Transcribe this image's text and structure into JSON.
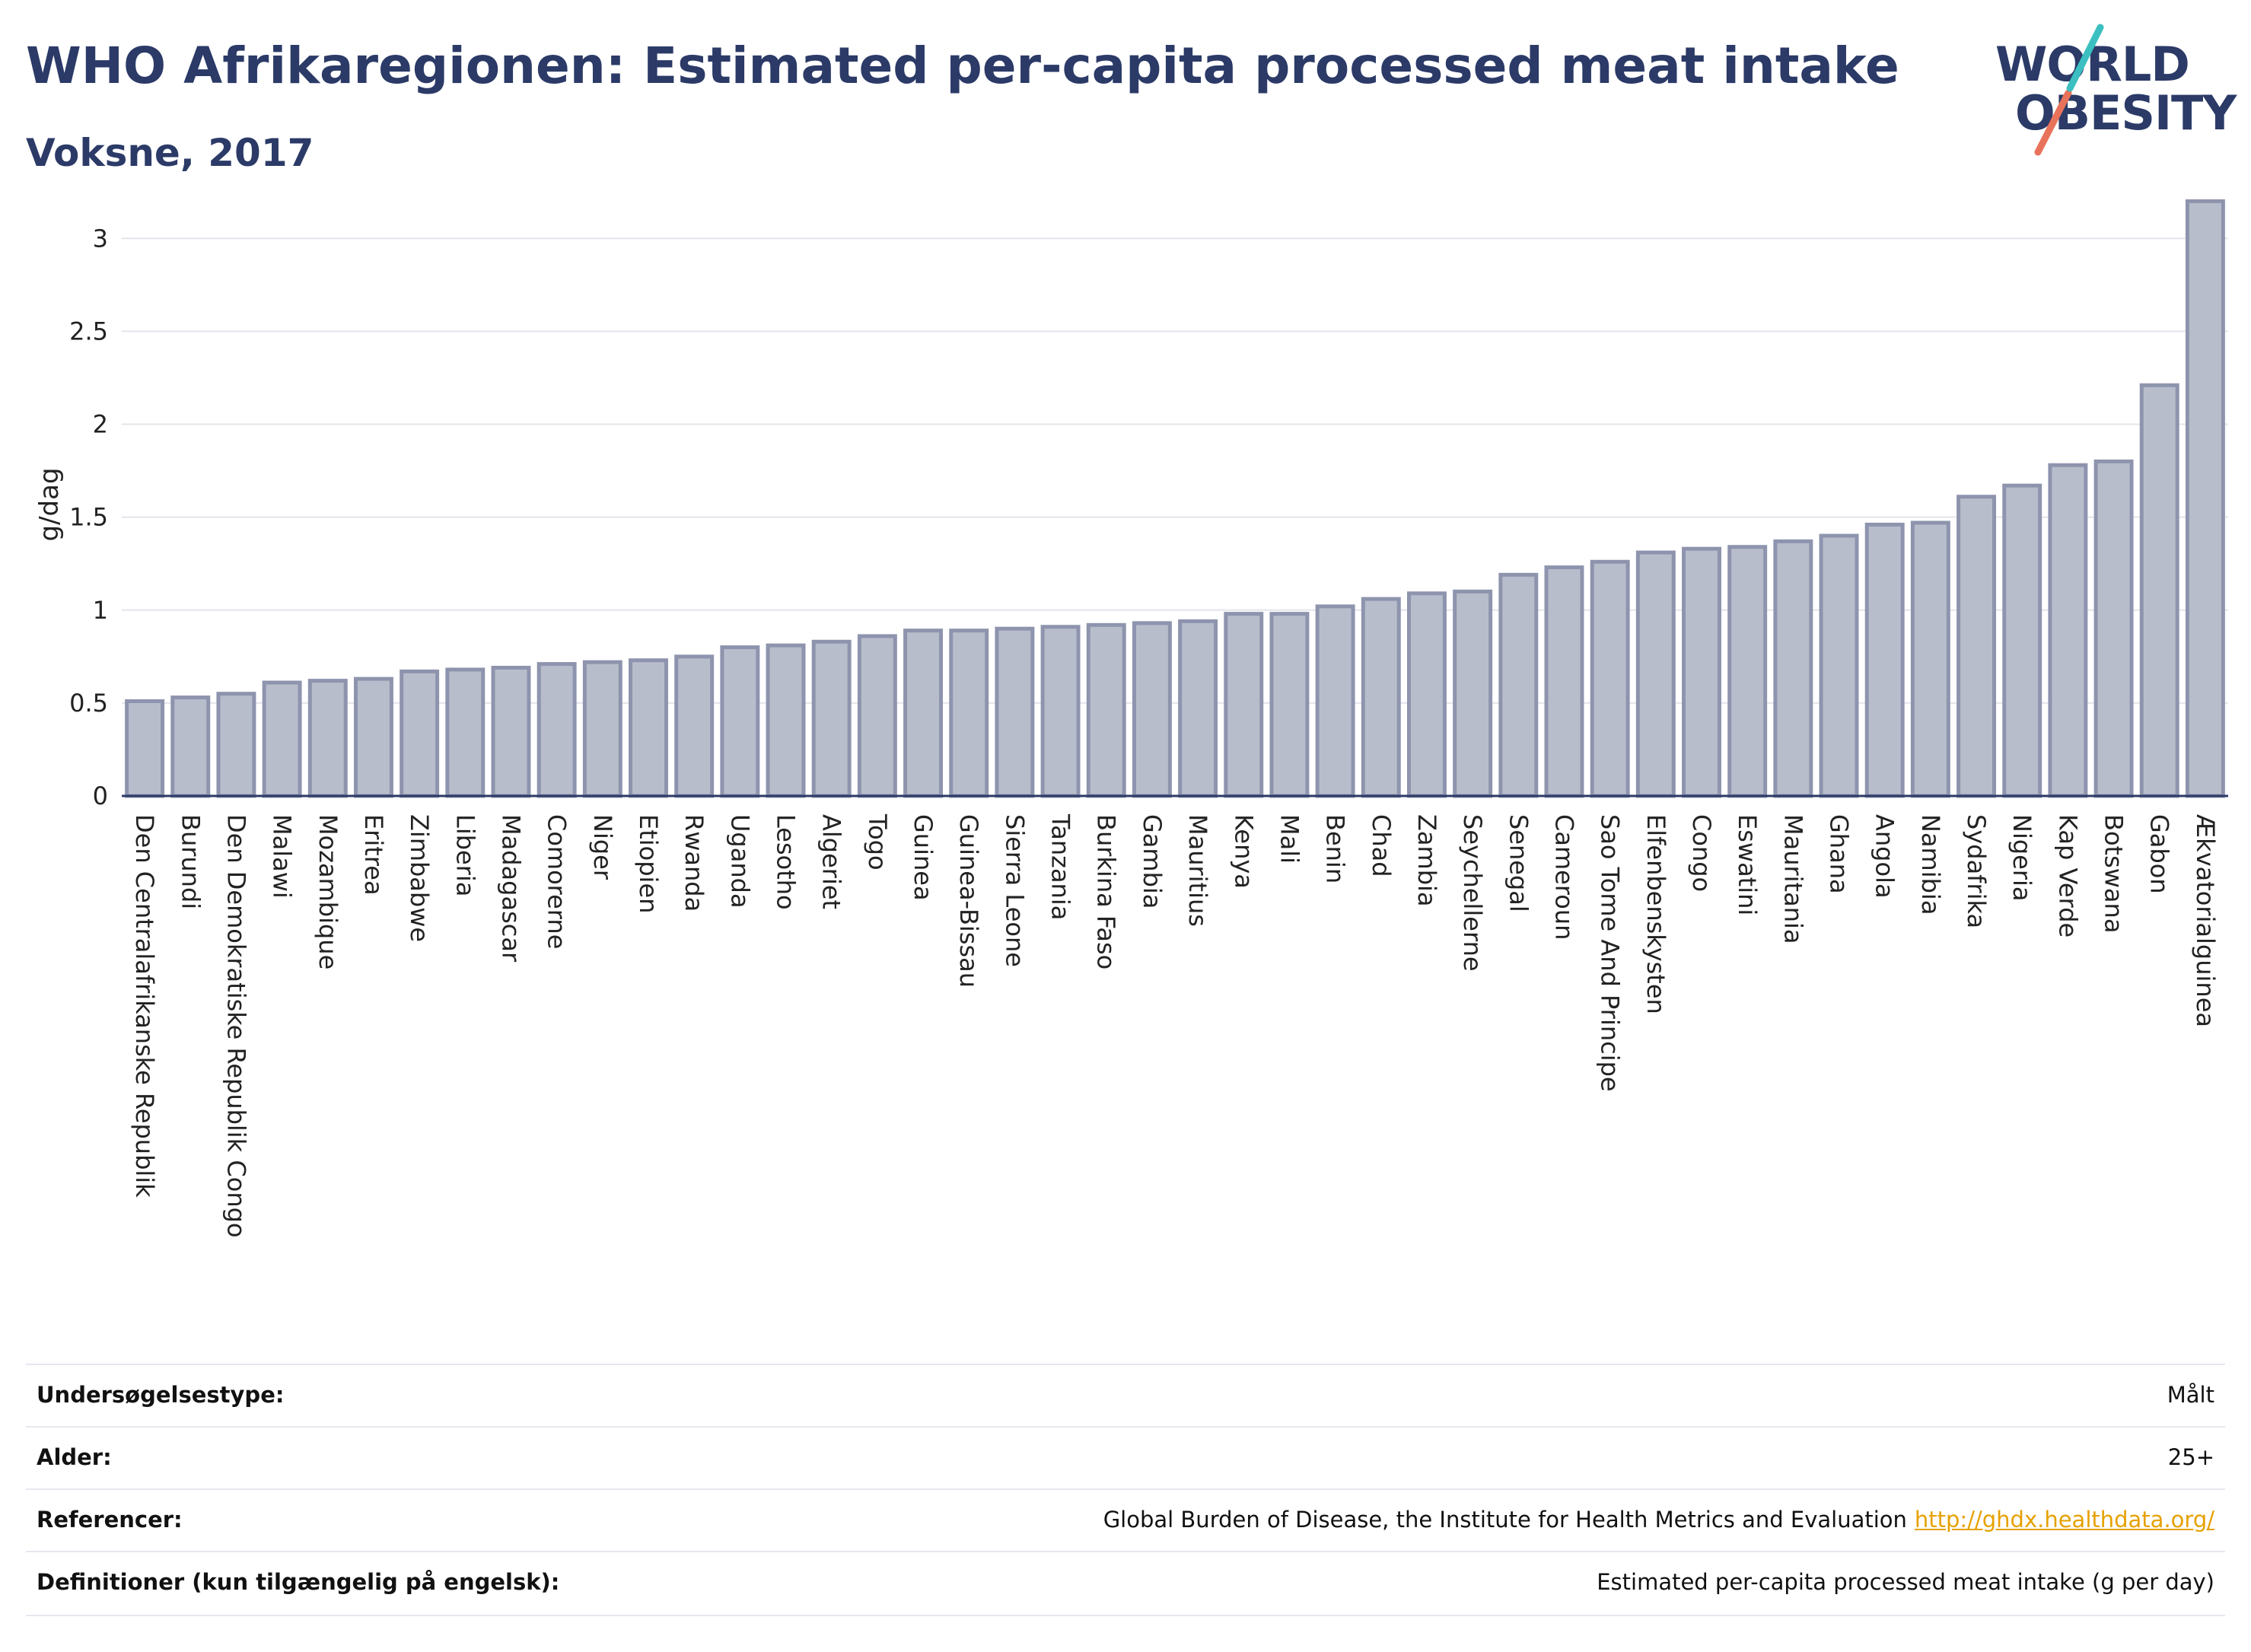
{
  "header": {
    "title": "WHO Afrikaregionen: Estimated per-capita processed meat intake",
    "subtitle": "Voksne, 2017"
  },
  "logo": {
    "line1": "WORLD",
    "line2": "OBESITY",
    "colors": {
      "text": "#2b3a67",
      "teal": "#3bbfc1",
      "coral": "#e8735a"
    }
  },
  "chart_data": {
    "type": "bar",
    "ylabel": "g/dag",
    "ylim": [
      0,
      3.3
    ],
    "yticks": [
      0,
      0.5,
      1,
      1.5,
      2,
      2.5,
      3
    ],
    "ytick_labels": [
      "0",
      "0.5",
      "1",
      "1.5",
      "2",
      "2.5",
      "3"
    ],
    "grid": true,
    "bar_color": "#b8bdcc",
    "bar_edge_color": "#8e94ad",
    "categories": [
      "Den Centralafrikanske Republik",
      "Burundi",
      "Den Demokratiske Republik Congo",
      "Malawi",
      "Mozambique",
      "Eritrea",
      "Zimbabwe",
      "Liberia",
      "Madagascar",
      "Comorerne",
      "Niger",
      "Etiopien",
      "Rwanda",
      "Uganda",
      "Lesotho",
      "Algeriet",
      "Togo",
      "Guinea",
      "Guinea-Bissau",
      "Sierra Leone",
      "Tanzania",
      "Burkina Faso",
      "Gambia",
      "Mauritius",
      "Kenya",
      "Mali",
      "Benin",
      "Chad",
      "Zambia",
      "Seychellerne",
      "Senegal",
      "Cameroun",
      "Sao Tome And Principe",
      "Elfenbenskysten",
      "Congo",
      "Eswatini",
      "Mauritania",
      "Ghana",
      "Angola",
      "Namibia",
      "Sydafrika",
      "Nigeria",
      "Kap Verde",
      "Botswana",
      "Gabon",
      "Ækvatorialguinea"
    ],
    "values": [
      0.51,
      0.53,
      0.55,
      0.61,
      0.62,
      0.63,
      0.67,
      0.68,
      0.69,
      0.71,
      0.72,
      0.73,
      0.75,
      0.8,
      0.81,
      0.83,
      0.86,
      0.89,
      0.89,
      0.9,
      0.91,
      0.92,
      0.93,
      0.94,
      0.98,
      0.98,
      1.02,
      1.06,
      1.09,
      1.1,
      1.19,
      1.23,
      1.26,
      1.31,
      1.33,
      1.34,
      1.37,
      1.4,
      1.46,
      1.47,
      1.61,
      1.67,
      1.78,
      1.8,
      2.21,
      3.2
    ]
  },
  "meta": {
    "rows": [
      {
        "label": "Undersøgelsestype:",
        "value": "Målt"
      },
      {
        "label": "Alder:",
        "value": "25+"
      },
      {
        "label": "Referencer:",
        "value": "Global Burden of Disease, the Institute for Health Metrics and Evaluation",
        "link": "http://ghdx.healthdata.org/"
      },
      {
        "label": "Definitioner (kun tilgængelig på engelsk):",
        "value": "Estimated per-capita processed meat intake (g per day)"
      }
    ]
  }
}
